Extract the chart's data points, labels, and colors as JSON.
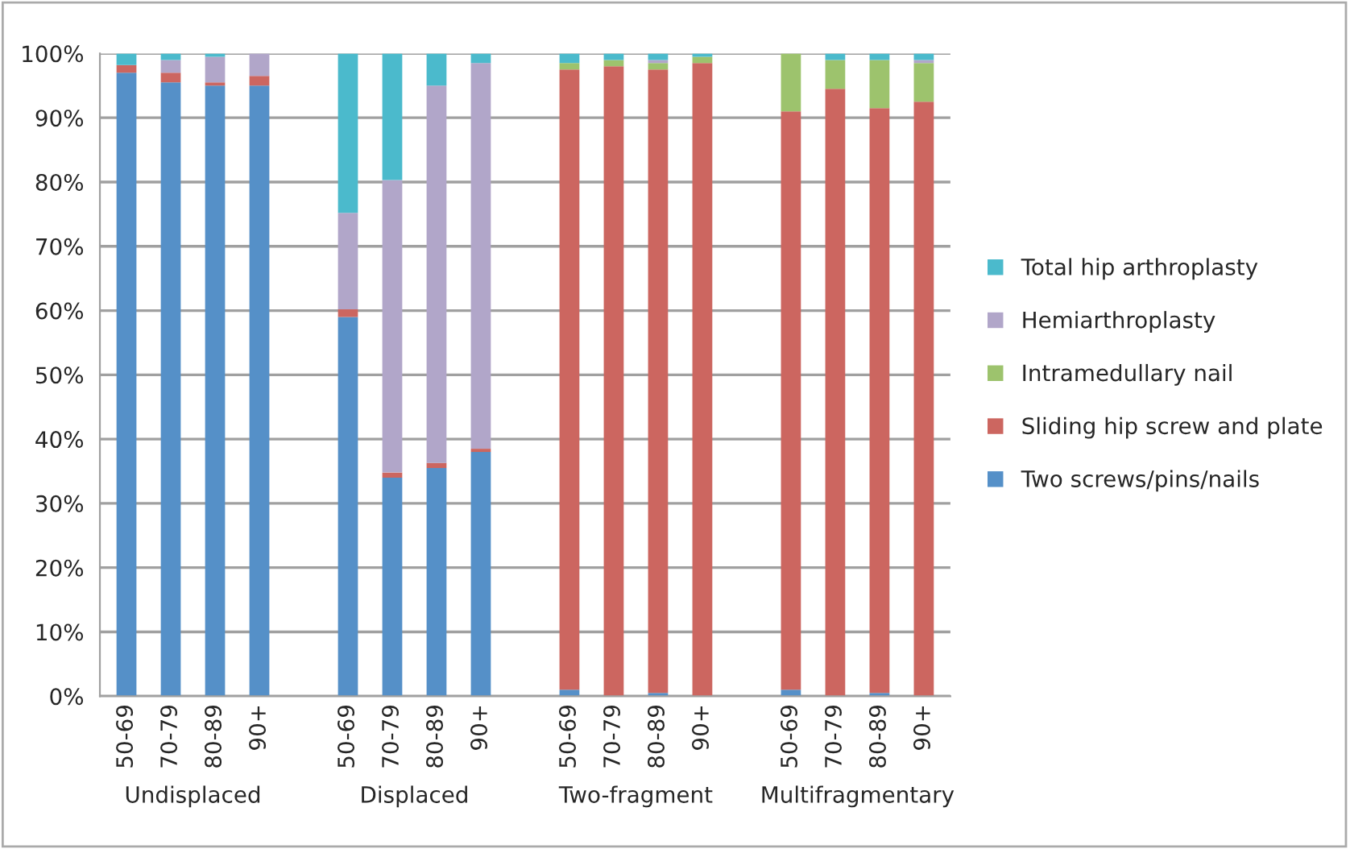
{
  "chart_data": {
    "type": "bar",
    "stacked": true,
    "categories": [
      "50-69",
      "70-79",
      "80-89",
      "90+",
      null,
      "50-69",
      "70-79",
      "80-89",
      "90+",
      null,
      "50-69",
      "70-79",
      "80-89",
      "90+",
      null,
      "50-69",
      "70-79",
      "80-89",
      "90+"
    ],
    "series": [
      {
        "name": "Two screws/pins/nails",
        "color": "#5590c8",
        "values": [
          97,
          95.5,
          95,
          95,
          null,
          59,
          34,
          35.5,
          38,
          null,
          1,
          0,
          0.5,
          0,
          null,
          1,
          0,
          0.5,
          0
        ]
      },
      {
        "name": "Sliding hip screw and plate",
        "color": "#cc6660",
        "values": [
          1.2,
          1.5,
          0.5,
          1.5,
          null,
          1.2,
          0.8,
          0.8,
          0.5,
          null,
          96.5,
          98,
          97,
          98.5,
          null,
          90,
          94.5,
          91,
          92.5
        ]
      },
      {
        "name": "Intramedullary nail",
        "color": "#9dc36d",
        "values": [
          0,
          0,
          0,
          0,
          null,
          0,
          0,
          0,
          0,
          null,
          1,
          1,
          1,
          1,
          null,
          9,
          4.5,
          7.5,
          6
        ]
      },
      {
        "name": "Hemiarthroplasty",
        "color": "#b1a6c9",
        "values": [
          0,
          2,
          4,
          3.5,
          null,
          15,
          45.5,
          58.7,
          60,
          null,
          0,
          0,
          0.5,
          0,
          null,
          0,
          0,
          0,
          0.5
        ]
      },
      {
        "name": "Total hip arthroplasty",
        "color": "#4bbacc",
        "values": [
          1.8,
          1,
          0.5,
          0,
          null,
          24.8,
          19.7,
          5,
          1.5,
          null,
          1.5,
          1,
          1,
          0.5,
          null,
          0,
          1,
          1,
          1
        ]
      }
    ],
    "ylim": [
      0,
      100
    ],
    "yticks": [
      {
        "value": 0,
        "label": "0%"
      },
      {
        "value": 10,
        "label": "10%"
      },
      {
        "value": 20,
        "label": "20%"
      },
      {
        "value": 30,
        "label": "30%"
      },
      {
        "value": 40,
        "label": "40%"
      },
      {
        "value": 50,
        "label": "50%"
      },
      {
        "value": 60,
        "label": "60%"
      },
      {
        "value": 70,
        "label": "70%"
      },
      {
        "value": 80,
        "label": "80%"
      },
      {
        "value": 90,
        "label": "90%"
      },
      {
        "value": 100,
        "label": "100%"
      }
    ],
    "grid": "y",
    "legend": "right",
    "annotations": [
      "Undisplaced",
      "Displaced",
      "Two-fragment",
      "Multifragmentary"
    ]
  }
}
